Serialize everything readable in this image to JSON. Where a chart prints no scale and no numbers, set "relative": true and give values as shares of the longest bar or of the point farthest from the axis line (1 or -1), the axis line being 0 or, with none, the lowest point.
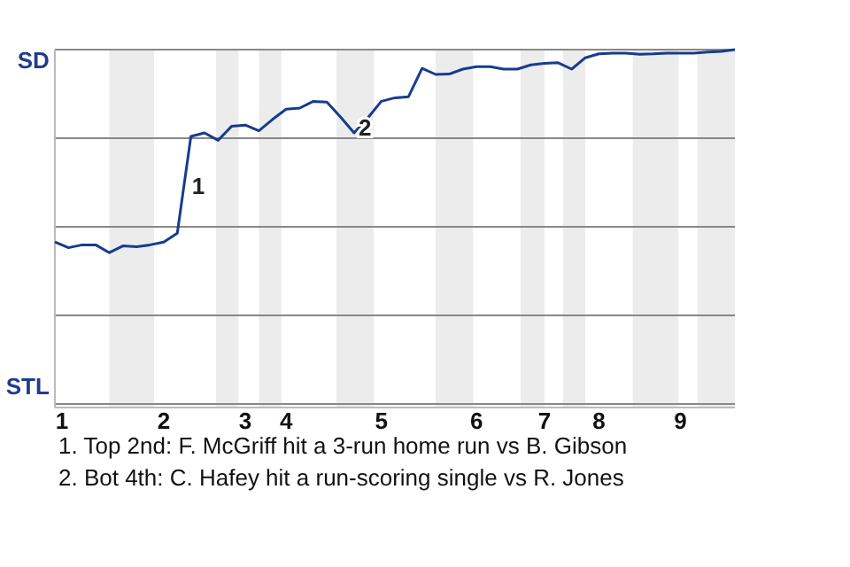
{
  "chart_data": {
    "type": "line",
    "relative": true,
    "categories": [
      "1",
      null,
      null,
      null,
      null,
      null,
      null,
      null,
      "2",
      null,
      null,
      null,
      null,
      null,
      "3",
      null,
      null,
      "4",
      null,
      null,
      null,
      null,
      null,
      null,
      "5",
      null,
      null,
      null,
      null,
      null,
      null,
      "6",
      null,
      null,
      null,
      null,
      "7",
      null,
      null,
      null,
      "8",
      null,
      null,
      null,
      null,
      null,
      "9",
      null,
      null,
      null,
      null
    ],
    "series": [
      {
        "color": "#163c8e",
        "values": [
          0.457,
          0.441,
          0.449,
          0.449,
          0.427,
          0.446,
          0.444,
          0.449,
          0.457,
          0.482,
          0.755,
          0.765,
          0.744,
          0.784,
          0.787,
          0.771,
          0.803,
          0.832,
          0.835,
          0.854,
          0.852,
          0.81,
          0.765,
          0.807,
          0.854,
          0.864,
          0.867,
          0.947,
          0.93,
          0.931,
          0.945,
          0.952,
          0.952,
          0.945,
          0.945,
          0.957,
          0.961,
          0.963,
          0.945,
          0.977,
          0.988,
          0.99,
          0.99,
          0.987,
          0.988,
          0.99,
          0.99,
          0.99,
          0.993,
          0.995,
          1
        ]
      }
    ],
    "grid": "y",
    "annotations": [
      "SD",
      "STL",
      "1",
      "2",
      "1. Top 2nd: F. McGriff hit a 3-run home run vs B. Gibson",
      "2. Bot 4th: C. Hafey hit a run-scoring single vs R. Jones"
    ]
  }
}
